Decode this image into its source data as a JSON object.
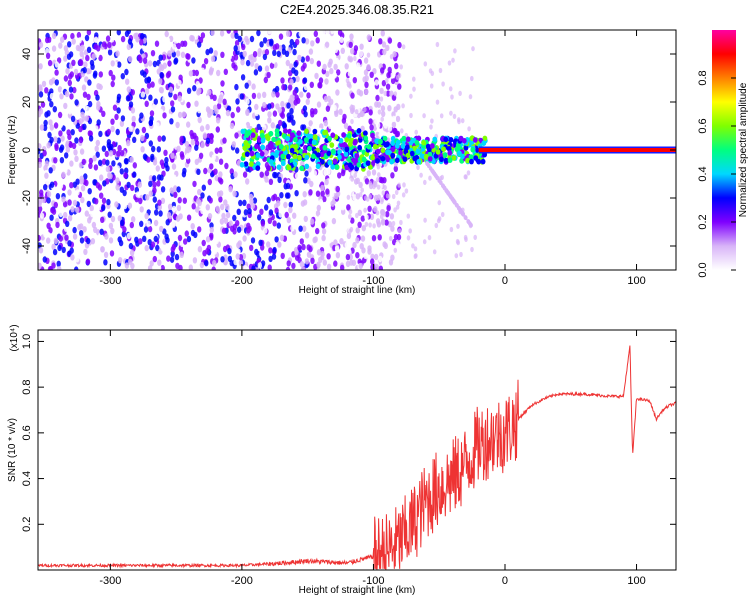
{
  "chart_data": [
    {
      "type": "heatmap",
      "title": "C2E4.2025.346.08.35.R21",
      "xlabel": "Height of straight line (km)",
      "ylabel": "Frequency (Hz)",
      "xlim": [
        -355,
        130
      ],
      "ylim": [
        -50,
        50
      ],
      "xticks": [
        -300,
        -200,
        -100,
        0,
        100
      ],
      "yticks": [
        40,
        20,
        0,
        -20,
        -40
      ],
      "colorbar": {
        "label": "Normalized spectral amplitude",
        "ticks": [
          "0.0",
          "0.2",
          "0.4",
          "0.6",
          "0.8"
        ],
        "tick_values": [
          0.0,
          0.2,
          0.4,
          0.6,
          0.8
        ],
        "range": [
          0,
          1
        ],
        "colors": [
          "#ffffff",
          "#d8b4f8",
          "#7f00ff",
          "#0000ff",
          "#00d8ff",
          "#00ff80",
          "#80ff00",
          "#ffff00",
          "#ff8000",
          "#ff0000",
          "#ff00a0"
        ]
      },
      "signal_line": {
        "start_x": -20,
        "end_x": 130,
        "frequency": 0,
        "amplitude": 0.95
      },
      "noise_region": {
        "from_x": -355,
        "to_x": -120,
        "frequency_spread": 50,
        "amplitude": 0.15
      }
    },
    {
      "type": "line",
      "xlabel": "Height of straight line (km)",
      "ylabel": "SNR (10 * v/v)",
      "y_multiplier": "(x10⁴)",
      "xlim": [
        -355,
        130
      ],
      "ylim": [
        0,
        1.05
      ],
      "xticks": [
        -300,
        -200,
        -100,
        0,
        100
      ],
      "yticks": [
        1.0,
        0.8,
        0.6,
        0.4,
        0.2
      ],
      "ytick_labels": [
        "1.0",
        "0.8",
        "0.6",
        "0.4",
        "0.2"
      ],
      "color": "#ee3333",
      "series": [
        {
          "name": "SNR",
          "x": [
            -355,
            -300,
            -250,
            -200,
            -170,
            -150,
            -120,
            -100,
            -90,
            -80,
            -70,
            -60,
            -50,
            -40,
            -30,
            -20,
            -10,
            0,
            10,
            20,
            30,
            40,
            60,
            80,
            90,
            95,
            97,
            100,
            110,
            115,
            120,
            125,
            130
          ],
          "y": [
            0.02,
            0.02,
            0.02,
            0.02,
            0.03,
            0.04,
            0.03,
            0.06,
            0.08,
            0.12,
            0.2,
            0.3,
            0.36,
            0.4,
            0.46,
            0.55,
            0.58,
            0.6,
            0.66,
            0.72,
            0.75,
            0.77,
            0.77,
            0.76,
            0.76,
            0.98,
            0.5,
            0.75,
            0.74,
            0.66,
            0.7,
            0.72,
            0.73
          ]
        }
      ]
    }
  ]
}
